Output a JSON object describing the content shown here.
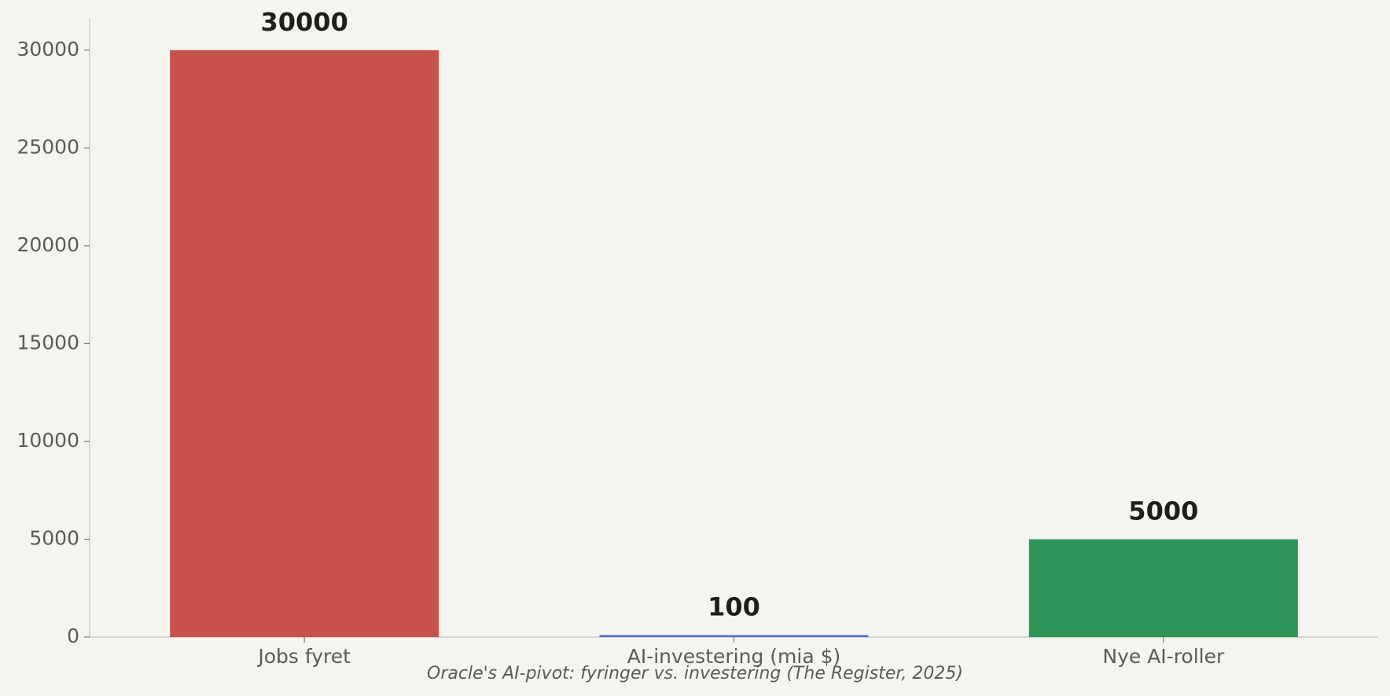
{
  "chart_data": {
    "type": "bar",
    "title": "Oracle's AI-pivot: fyringer vs. investering (The Register, 2025)",
    "categories": [
      "Jobs fyret",
      "AI-investering (mia $)",
      "Nye AI-roller"
    ],
    "values": [
      30000,
      100,
      5000
    ],
    "colors": [
      "#c8524c",
      "#4a6fc8",
      "#2e9558"
    ],
    "ylim": [
      0,
      31600
    ],
    "yticks": [
      0,
      5000,
      10000,
      15000,
      20000,
      25000,
      30000
    ],
    "grid": false
  }
}
